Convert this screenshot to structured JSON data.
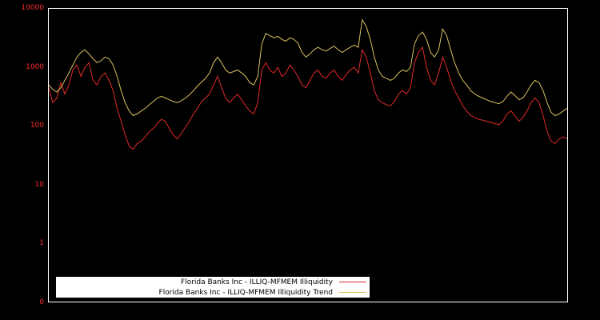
{
  "chart_data": {
    "type": "line",
    "title": "",
    "xlabel": "",
    "ylabel": "",
    "background_color": "#000000",
    "plot_border_color": "#ffffff",
    "tick_label_color": "#ff2a2a",
    "y_scale": "log",
    "y_decades_top_value": 10000,
    "y_tick_labels": [
      "10000",
      "1000",
      "100",
      "10",
      "1",
      "0"
    ],
    "grid": "off",
    "legend_position": "bottom-left-inside",
    "series": [
      {
        "name": "Florida Banks Inc - ILLIQ-MFMEM Illiquidity",
        "color": "#e02a2a",
        "values": [
          450,
          250,
          300,
          550,
          350,
          500,
          900,
          1100,
          700,
          1000,
          1200,
          600,
          500,
          700,
          800,
          600,
          400,
          200,
          120,
          70,
          45,
          40,
          50,
          55,
          65,
          80,
          90,
          110,
          130,
          120,
          90,
          70,
          60,
          75,
          95,
          120,
          160,
          200,
          260,
          300,
          350,
          500,
          700,
          450,
          300,
          250,
          300,
          350,
          280,
          220,
          180,
          160,
          250,
          900,
          1200,
          900,
          800,
          1000,
          700,
          800,
          1100,
          900,
          700,
          500,
          450,
          600,
          800,
          900,
          700,
          650,
          800,
          900,
          700,
          600,
          750,
          900,
          1000,
          800,
          2000,
          1500,
          800,
          400,
          280,
          250,
          230,
          220,
          260,
          350,
          400,
          350,
          450,
          1200,
          1800,
          2200,
          1000,
          600,
          500,
          800,
          1500,
          1000,
          600,
          400,
          300,
          220,
          180,
          150,
          140,
          130,
          125,
          120,
          115,
          110,
          105,
          120,
          160,
          180,
          150,
          120,
          140,
          180,
          250,
          300,
          250,
          150,
          80,
          55,
          50,
          60,
          65,
          60
        ]
      },
      {
        "name": "Florida Banks Inc - ILLIQ-MFMEM Illiquidity Trend",
        "color": "#d9c25f",
        "values": [
          500,
          420,
          380,
          450,
          600,
          800,
          1100,
          1500,
          1800,
          2000,
          1700,
          1400,
          1200,
          1300,
          1500,
          1400,
          1100,
          700,
          400,
          250,
          180,
          150,
          160,
          180,
          200,
          230,
          260,
          300,
          320,
          300,
          280,
          260,
          250,
          270,
          300,
          340,
          400,
          480,
          560,
          650,
          800,
          1200,
          1500,
          1200,
          900,
          800,
          850,
          900,
          800,
          700,
          550,
          500,
          700,
          2500,
          3800,
          3500,
          3200,
          3400,
          3000,
          2800,
          3200,
          3000,
          2600,
          1800,
          1500,
          1700,
          2000,
          2200,
          2000,
          1900,
          2100,
          2300,
          2000,
          1800,
          2000,
          2200,
          2400,
          2200,
          6500,
          5000,
          3000,
          1500,
          900,
          700,
          650,
          600,
          650,
          800,
          900,
          850,
          1000,
          2500,
          3500,
          4000,
          3000,
          1800,
          1500,
          2000,
          4500,
          3500,
          2000,
          1200,
          800,
          600,
          500,
          400,
          350,
          320,
          300,
          280,
          260,
          250,
          240,
          260,
          320,
          380,
          330,
          280,
          300,
          380,
          500,
          600,
          550,
          400,
          250,
          170,
          150,
          160,
          180,
          200
        ]
      }
    ]
  }
}
